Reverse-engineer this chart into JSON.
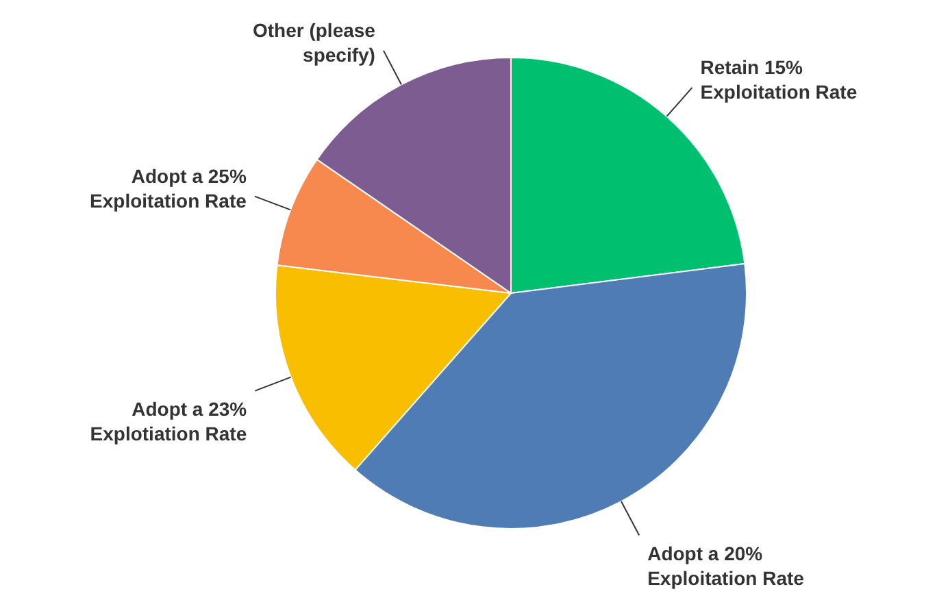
{
  "chart_data": {
    "type": "pie",
    "categories": [
      "Retain 15% Exploitation Rate",
      "Adopt a 20% Exploitation Rate",
      "Adopt a 23% Explotiation Rate",
      "Adopt a 25% Exploitation Rate",
      "Other (please specify)"
    ],
    "values": [
      23,
      38.5,
      15.4,
      7.7,
      15.4
    ],
    "colors": [
      "#00bf6f",
      "#507cb6",
      "#f9be00",
      "#f7894e",
      "#7d5d91"
    ]
  }
}
